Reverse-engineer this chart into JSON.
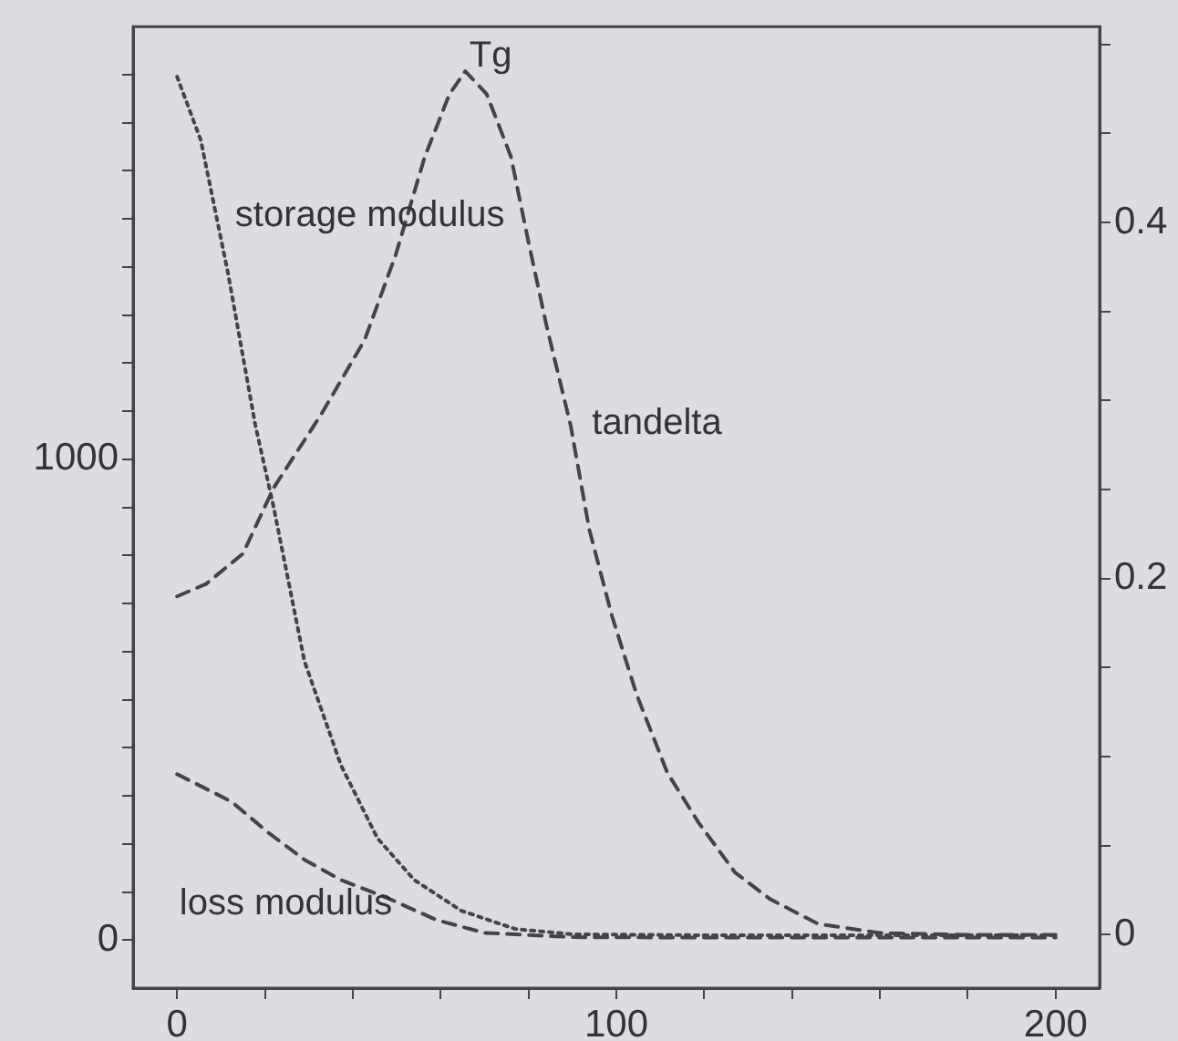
{
  "chart_data": {
    "type": "line",
    "xlim": [
      -10,
      210
    ],
    "xticks": [
      0,
      {
        "value": 20,
        "label": null
      },
      {
        "value": 40,
        "label": null
      },
      {
        "value": 60,
        "label": null
      },
      {
        "value": 80,
        "label": null
      },
      100,
      {
        "value": 120,
        "label": null
      },
      {
        "value": 140,
        "label": null
      },
      {
        "value": 160,
        "label": null
      },
      {
        "value": 180,
        "label": null
      },
      200
    ],
    "ylim": [
      -100,
      1900
    ],
    "yticks": [
      0,
      {
        "value": 100,
        "label": null
      },
      {
        "value": 200,
        "label": null
      },
      {
        "value": 300,
        "label": null
      },
      {
        "value": 400,
        "label": null
      },
      {
        "value": 500,
        "label": null
      },
      {
        "value": 600,
        "label": null
      },
      {
        "value": 700,
        "label": null
      },
      {
        "value": 800,
        "label": null
      },
      {
        "value": 900,
        "label": null
      },
      1000,
      {
        "value": 1100,
        "label": null
      },
      {
        "value": 1200,
        "label": null
      },
      {
        "value": 1300,
        "label": null
      },
      {
        "value": 1400,
        "label": null
      },
      {
        "value": 1500,
        "label": null
      },
      {
        "value": 1600,
        "label": null
      },
      {
        "value": 1700,
        "label": null
      },
      {
        "value": 1800,
        "label": null
      }
    ],
    "y2lim": [
      -0.03,
      0.51
    ],
    "y2ticks": [
      0,
      {
        "value": 0.05,
        "label": null
      },
      {
        "value": 0.1,
        "label": null
      },
      {
        "value": 0.15,
        "label": null
      },
      0.2,
      {
        "value": 0.25,
        "label": null
      },
      {
        "value": 0.3,
        "label": null
      },
      {
        "value": 0.35,
        "label": null
      },
      0.4,
      {
        "value": 0.45,
        "label": null
      },
      {
        "value": 0.5,
        "label": null
      }
    ],
    "grid": false,
    "legend": false,
    "marker": "none",
    "series": [
      {
        "name": "storage modulus",
        "color": "#444444",
        "line_style": "dotted",
        "x": [
          0,
          5.4,
          11.6,
          17.8,
          22,
          29,
          37.3,
          45.6,
          54,
          64.7,
          77,
          90,
          120,
          160,
          200
        ],
        "values": [
          1796,
          1664,
          1387,
          1072,
          900,
          580,
          364,
          212,
          125,
          61,
          23,
          12,
          10,
          10,
          10
        ]
      },
      {
        "name": "loss modulus",
        "color": "#444444",
        "line_style": "dashed",
        "x": [
          0,
          12.4,
          20.7,
          29,
          37.3,
          48,
          59,
          70,
          90,
          120,
          160,
          200
        ],
        "values": [
          345,
          288,
          224,
          167,
          125,
          87,
          42,
          15,
          6,
          5,
          5,
          5
        ]
      },
      {
        "name": "tandelta",
        "color": "#444444",
        "line_style": "dashed",
        "axis": "y2",
        "x": [
          0,
          6.6,
          15,
          22,
          33,
          42.7,
          49.8,
          56.4,
          62,
          65.6,
          70.5,
          76,
          80,
          84.2,
          89.6,
          93.8,
          99,
          104.6,
          111.6,
          118.7,
          127,
          135,
          146,
          160,
          180,
          200
        ],
        "values": [
          0.19,
          0.197,
          0.214,
          0.251,
          0.293,
          0.334,
          0.382,
          0.437,
          0.472,
          0.485,
          0.472,
          0.437,
          0.389,
          0.341,
          0.286,
          0.228,
          0.179,
          0.135,
          0.091,
          0.063,
          0.035,
          0.02,
          0.006,
          0.001,
          0,
          0
        ]
      }
    ],
    "annotations": [
      "Tg"
    ]
  }
}
